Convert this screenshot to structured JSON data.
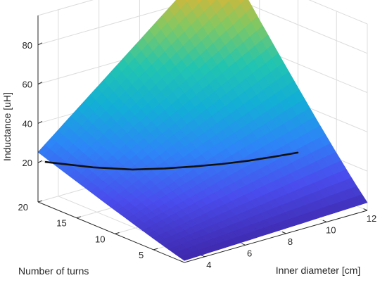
{
  "chart_data": {
    "type": "surface",
    "title": "",
    "xlabel": "Inner diameter [cm]",
    "ylabel": "Number of turns",
    "zlabel": "Inductance [uH]",
    "xlim": [
      3,
      12
    ],
    "ylim": [
      1,
      20
    ],
    "zlim": [
      0,
      95
    ],
    "xticks": [
      "4",
      "6",
      "8",
      "10",
      "12"
    ],
    "yticks": [
      "5",
      "10",
      "15",
      "20"
    ],
    "zticks": [
      "20",
      "40",
      "60",
      "80"
    ],
    "grid": true,
    "colormap": [
      "#3e26a8",
      "#4a4ced",
      "#2d85f7",
      "#13aed6",
      "#22c4b0",
      "#80c864",
      "#e0b533",
      "#f9fb15"
    ],
    "surface": {
      "x": [
        3,
        4,
        5,
        6,
        7,
        8,
        9,
        10,
        11,
        12
      ],
      "y": [
        1,
        3,
        5,
        7,
        9,
        11,
        13,
        15,
        17,
        19
      ],
      "corner_values": {
        "x3_y1": 1.0,
        "x12_y1": 4.0,
        "x3_y19": 24.0,
        "x12_y19": 96.0
      }
    },
    "series": [
      {
        "x": [
          3,
          4,
          5,
          6,
          7,
          8,
          9,
          10,
          11
        ],
        "y": [
          19,
          15.5,
          13,
          11.5,
          10.3,
          9.3,
          8.5,
          7.9,
          7.4
        ],
        "z": [
          22,
          22,
          22,
          22,
          22,
          22,
          22,
          22,
          22
        ]
      }
    ]
  }
}
